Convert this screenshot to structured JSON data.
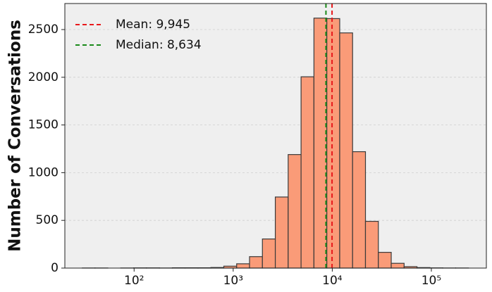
{
  "chart_data": {
    "type": "histogram",
    "y_label": "Number of Conversations",
    "bins": [
      30,
      40.3,
      54.3,
      73.3,
      98.9,
      133,
      180,
      243,
      327,
      442,
      596,
      804,
      1084,
      1462,
      1972,
      2661,
      3589,
      4842,
      6531,
      8810,
      11885,
      16032,
      21627,
      29174,
      39355,
      53088,
      71614,
      96605,
      130317,
      175792,
      237137
    ],
    "values": [
      1,
      1,
      0,
      1,
      2,
      2,
      1,
      3,
      3,
      3,
      6,
      20,
      45,
      120,
      305,
      745,
      1190,
      2005,
      2620,
      2615,
      2465,
      1220,
      490,
      165,
      50,
      15,
      5,
      2,
      1,
      1
    ],
    "color": "#fa9b78",
    "edge_color": "#3a3a3a",
    "xscale": "log",
    "xlim": [
      20,
      359000
    ],
    "xticks": [
      {
        "value": 100,
        "label": "10²"
      },
      {
        "value": 1000,
        "label": "10³"
      },
      {
        "value": 10000,
        "label": "10⁴"
      },
      {
        "value": 100000,
        "label": "10⁵"
      }
    ],
    "ylim": [
      0,
      2773
    ],
    "yticks": [
      0,
      500,
      1000,
      1500,
      2000,
      2500
    ],
    "grid": true,
    "legend_position": "upper-left",
    "lines": [
      {
        "name": "Mean: 9,945",
        "value": 9945,
        "color": "#e8191c"
      },
      {
        "name": "Median: 8,634",
        "value": 8634,
        "color": "#1a8a1a"
      }
    ]
  }
}
